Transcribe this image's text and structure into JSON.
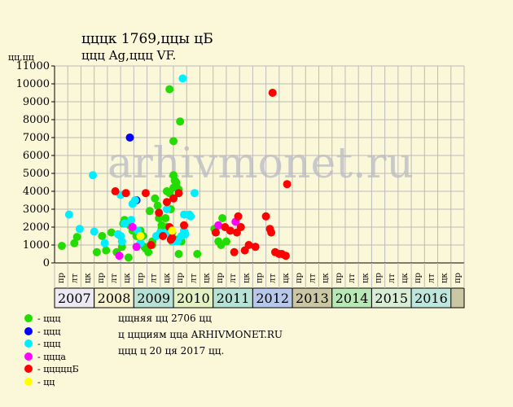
{
  "header": {
    "title": "цццк 1769,ццы цБ",
    "subtitle": "ццц Ag,ццц VF.",
    "units": "цц,цц"
  },
  "watermark": "arhivmonet.ru",
  "footer": {
    "line1": "цщняя цц 2706 цц",
    "line2": "ц ццциям цца ARHIVMONET.RU",
    "line3": "ццц ц 20 ця 2017 цц."
  },
  "chart_data": {
    "type": "scatter",
    "ylim": [
      0,
      11000
    ],
    "y_ticks": [
      0,
      1000,
      2000,
      3000,
      4000,
      5000,
      6000,
      7000,
      8000,
      9000,
      10000,
      11000
    ],
    "years": [
      "2007",
      "2008",
      "2009",
      "2010",
      "2011",
      "2012",
      "2013",
      "2014",
      "2015",
      "2016"
    ],
    "sub_periods": [
      "пр",
      "лт",
      "цк"
    ],
    "year_colors": [
      "#ece9f3",
      "#f5f3cf",
      "#b8e2d6",
      "#e4f1c2",
      "#b8e2d6",
      "#b8c8ea",
      "#cbc7a4",
      "#b9e7b5",
      "#d8ecd6",
      "#bee6dd"
    ],
    "colors": {
      "green": "#22dd00",
      "blue": "#0000ff",
      "cyan": "#00eeff",
      "magenta": "#ff00ff",
      "red": "#ff0000",
      "yellow": "#ffff00",
      "grid": "#bbbbbb",
      "watermark": "#c9c9c9"
    },
    "legend": [
      {
        "label": "- ццц",
        "color": "#22dd00"
      },
      {
        "label": "- ццц",
        "color": "#0000ff"
      },
      {
        "label": "- ццц",
        "color": "#00eeff"
      },
      {
        "label": "- ццца",
        "color": "#ff00ff"
      },
      {
        "label": "- цццццБ",
        "color": "#ff0000"
      },
      {
        "label": "- цц",
        "color": "#ffff00"
      }
    ],
    "series": [
      {
        "color": "green",
        "points": [
          [
            0.05,
            950
          ],
          [
            1.0,
            1100
          ],
          [
            1.2,
            1450
          ],
          [
            2.7,
            600
          ],
          [
            3.1,
            1500
          ],
          [
            3.4,
            700
          ],
          [
            3.8,
            1700
          ],
          [
            4.2,
            600
          ],
          [
            4.5,
            1500
          ],
          [
            4.6,
            1200
          ],
          [
            4.7,
            2200
          ],
          [
            4.8,
            2400
          ],
          [
            4.6,
            900
          ],
          [
            5.1,
            300
          ],
          [
            5.2,
            2100
          ],
          [
            5.4,
            1800
          ],
          [
            5.7,
            1500
          ],
          [
            6.0,
            1800
          ],
          [
            6.2,
            1500
          ],
          [
            6.3,
            900
          ],
          [
            6.4,
            800
          ],
          [
            6.6,
            600
          ],
          [
            6.9,
            1000
          ],
          [
            6.7,
            2900
          ],
          [
            6.9,
            1200
          ],
          [
            7.1,
            3600
          ],
          [
            7.3,
            3200
          ],
          [
            7.4,
            2500
          ],
          [
            7.6,
            2100
          ],
          [
            7.6,
            1900
          ],
          [
            7.7,
            1600
          ],
          [
            7.9,
            2500
          ],
          [
            8.0,
            2000
          ],
          [
            8.0,
            4000
          ],
          [
            8.2,
            9700
          ],
          [
            8.2,
            3900
          ],
          [
            8.3,
            3000
          ],
          [
            8.4,
            1700
          ],
          [
            8.5,
            6800
          ],
          [
            8.5,
            4900
          ],
          [
            8.6,
            4600
          ],
          [
            8.7,
            4500
          ],
          [
            8.7,
            4300
          ],
          [
            8.5,
            4200
          ],
          [
            8.4,
            1200
          ],
          [
            8.8,
            1300
          ],
          [
            8.9,
            4100
          ],
          [
            9.0,
            7900
          ],
          [
            8.9,
            500
          ],
          [
            9.1,
            1200
          ],
          [
            10.3,
            500
          ],
          [
            11.6,
            1900
          ],
          [
            11.7,
            1700
          ],
          [
            11.9,
            1200
          ],
          [
            12.1,
            1000
          ],
          [
            12.2,
            2500
          ],
          [
            12.5,
            1200
          ]
        ]
      },
      {
        "color": "blue",
        "points": [
          [
            5.2,
            7000
          ],
          [
            5.7,
            3500
          ]
        ]
      },
      {
        "color": "cyan",
        "points": [
          [
            0.6,
            2700
          ],
          [
            1.4,
            1900
          ],
          [
            2.4,
            4900
          ],
          [
            2.5,
            1750
          ],
          [
            3.3,
            1100
          ],
          [
            4.3,
            1600
          ],
          [
            4.5,
            3800
          ],
          [
            4.5,
            1500
          ],
          [
            4.6,
            1200
          ],
          [
            4.8,
            2200
          ],
          [
            5.3,
            2400
          ],
          [
            5.4,
            3300
          ],
          [
            5.6,
            3500
          ],
          [
            5.8,
            1800
          ],
          [
            6.0,
            1100
          ],
          [
            7.2,
            1500
          ],
          [
            7.5,
            1700
          ],
          [
            7.9,
            1700
          ],
          [
            8.0,
            3000
          ],
          [
            8.2,
            1600
          ],
          [
            8.5,
            1200
          ],
          [
            8.8,
            1200
          ],
          [
            9.1,
            1500
          ],
          [
            9.2,
            10300
          ],
          [
            9.3,
            2700
          ],
          [
            9.3,
            1800
          ],
          [
            9.4,
            1600
          ],
          [
            9.7,
            2700
          ],
          [
            9.8,
            2600
          ],
          [
            10.1,
            3900
          ]
        ]
      },
      {
        "color": "magenta",
        "points": [
          [
            4.4,
            400
          ],
          [
            5.4,
            2000
          ],
          [
            5.7,
            900
          ],
          [
            11.9,
            2100
          ],
          [
            13.2,
            2300
          ]
        ]
      },
      {
        "color": "red",
        "points": [
          [
            4.1,
            4000
          ],
          [
            4.9,
            3900
          ],
          [
            6.4,
            3900
          ],
          [
            6.8,
            1000
          ],
          [
            7.4,
            2800
          ],
          [
            7.7,
            1500
          ],
          [
            8.0,
            3400
          ],
          [
            8.2,
            2000
          ],
          [
            8.3,
            1300
          ],
          [
            8.4,
            1400
          ],
          [
            8.5,
            3600
          ],
          [
            8.9,
            3900
          ],
          [
            9.3,
            2100
          ],
          [
            11.7,
            1700
          ],
          [
            12.4,
            2000
          ],
          [
            12.8,
            1800
          ],
          [
            13.1,
            600
          ],
          [
            13.3,
            1700
          ],
          [
            13.4,
            2600
          ],
          [
            13.6,
            2000
          ],
          [
            13.9,
            700
          ],
          [
            14.2,
            1000
          ],
          [
            14.7,
            900
          ],
          [
            15.5,
            2600
          ],
          [
            15.8,
            1900
          ],
          [
            15.9,
            1700
          ],
          [
            16.0,
            9500
          ],
          [
            16.2,
            600
          ],
          [
            16.5,
            500
          ],
          [
            16.7,
            500
          ],
          [
            17.0,
            400
          ],
          [
            17.1,
            4400
          ]
        ]
      },
      {
        "color": "yellow",
        "points": [
          [
            6.0,
            1500
          ],
          [
            8.4,
            1800
          ]
        ]
      }
    ]
  }
}
